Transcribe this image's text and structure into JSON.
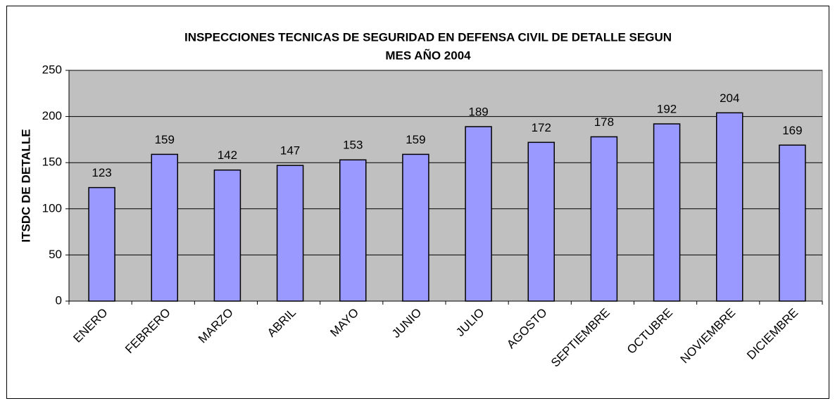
{
  "chart_data": {
    "type": "bar",
    "title": [
      "INSPECCIONES TECNICAS DE SEGURIDAD EN DEFENSA CIVIL DE DETALLE SEGUN",
      "MES  AÑO 2004"
    ],
    "y_label": "ITSDC DE DETALLE",
    "categories": [
      "ENERO",
      "FEBRERO",
      "MARZO",
      "ABRIL",
      "MAYO",
      "JUNIO",
      "JULIO",
      "AGOSTO",
      "SEPTIEMBRE",
      "OCTUBRE",
      "NOVIEMBRE",
      "DICIEMBRE"
    ],
    "values": [
      123,
      159,
      142,
      147,
      153,
      159,
      189,
      172,
      178,
      192,
      204,
      169
    ],
    "color": "#9999ff",
    "ylim": [
      0,
      250
    ],
    "yticks": [
      0,
      50,
      100,
      150,
      200,
      250
    ],
    "grid": true
  }
}
